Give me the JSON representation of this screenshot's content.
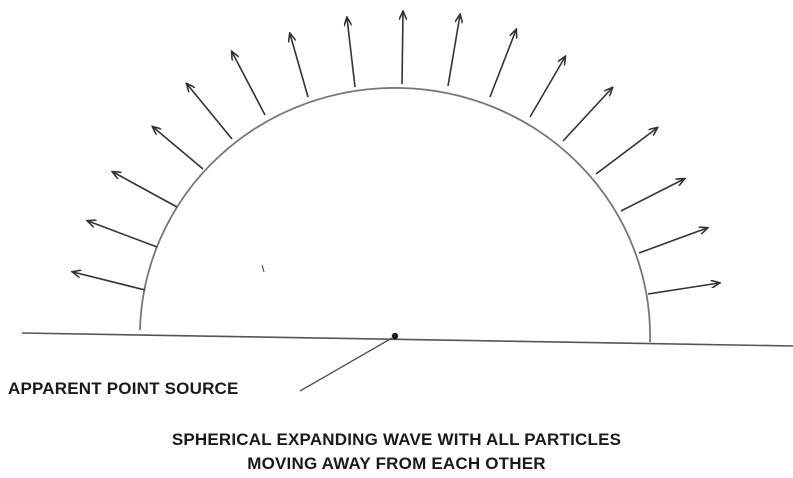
{
  "labels": {
    "source": "APPARENT POINT SOURCE",
    "caption_line1": "SPHERICAL EXPANDING WAVE WITH ALL PARTICLES",
    "caption_line2": "MOVING AWAY FROM EACH OTHER"
  },
  "colors": {
    "ink": "#1a1a1a",
    "arrow": "#333333",
    "wavefront": "#777777"
  }
}
